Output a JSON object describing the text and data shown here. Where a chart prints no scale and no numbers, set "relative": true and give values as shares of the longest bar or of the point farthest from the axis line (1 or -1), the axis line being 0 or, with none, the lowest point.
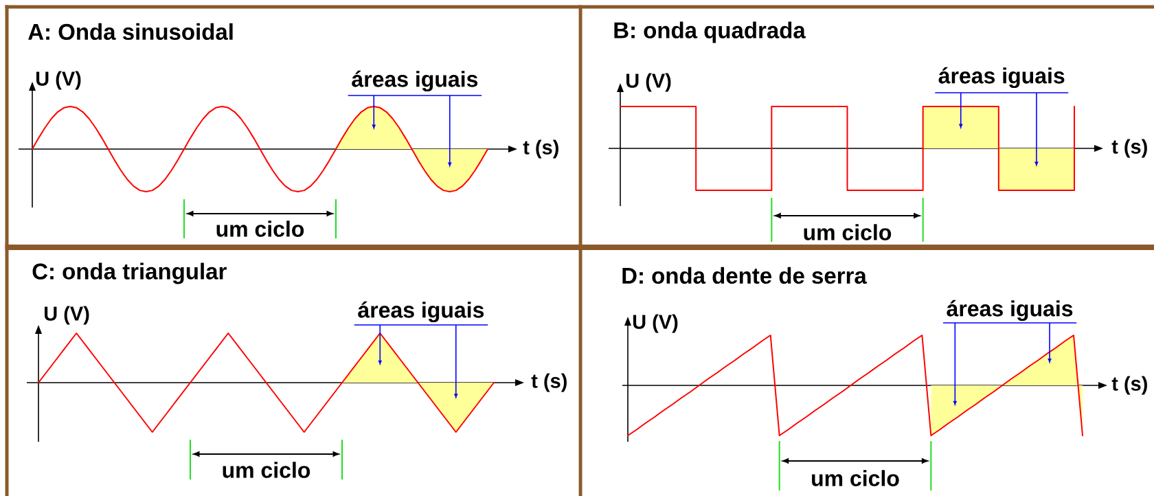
{
  "chart_data": [
    {
      "type": "line",
      "title": "A: Onda sinusoidal",
      "xlabel": "t (s)",
      "ylabel": "U (V)",
      "relative": true,
      "categories": [
        null,
        null,
        null,
        null,
        null,
        null,
        null,
        null,
        null,
        null,
        null,
        null,
        null,
        null,
        null,
        null,
        null,
        null,
        null,
        null,
        null,
        null,
        null,
        null,
        null,
        null,
        null,
        null,
        null,
        null,
        null,
        null,
        null,
        null,
        null,
        null,
        null,
        null,
        null,
        null,
        null,
        null,
        null,
        null,
        null,
        null,
        null,
        null,
        null,
        null,
        null,
        null,
        null,
        null,
        null,
        null,
        null,
        null,
        null,
        null,
        null,
        null,
        null,
        null,
        null,
        null,
        null,
        null,
        null,
        null,
        null,
        null,
        null
      ],
      "series": [
        {
          "color": "#ff0000",
          "values": [
            0,
            0.26,
            0.5,
            0.71,
            0.87,
            0.97,
            1,
            0.97,
            0.87,
            0.71,
            0.5,
            0.26,
            0,
            -0.26,
            -0.5,
            -0.71,
            -0.87,
            -0.97,
            -1,
            -0.97,
            -0.87,
            -0.71,
            -0.5,
            -0.26,
            0,
            0.26,
            0.5,
            0.71,
            0.87,
            0.97,
            1,
            0.97,
            0.87,
            0.71,
            0.5,
            0.26,
            0,
            -0.26,
            -0.5,
            -0.71,
            -0.87,
            -0.97,
            -1,
            -0.97,
            -0.87,
            -0.71,
            -0.5,
            -0.26,
            0,
            0.26,
            0.5,
            0.71,
            0.87,
            0.97,
            1,
            0.97,
            0.87,
            0.71,
            0.5,
            0.26,
            0,
            -0.26,
            -0.5,
            -0.71,
            -0.87,
            -0.97,
            -1,
            -0.97,
            -0.87,
            -0.71,
            -0.5,
            -0.26,
            0
          ]
        },
        {
          "type": "area",
          "color": "#ffff99",
          "values": [
            null,
            null,
            null,
            null,
            null,
            null,
            null,
            null,
            null,
            null,
            null,
            null,
            null,
            null,
            null,
            null,
            null,
            null,
            null,
            null,
            null,
            null,
            null,
            null,
            null,
            null,
            null,
            null,
            null,
            null,
            null,
            null,
            null,
            null,
            null,
            null,
            null,
            null,
            null,
            null,
            null,
            null,
            null,
            null,
            null,
            null,
            null,
            null,
            0,
            0.26,
            0.5,
            0.71,
            0.87,
            0.97,
            1,
            0.97,
            0.87,
            0.71,
            0.5,
            0.26,
            0,
            -0.26,
            -0.5,
            -0.71,
            -0.87,
            -0.97,
            -1,
            -0.97,
            -0.87,
            -0.71,
            -0.5,
            -0.26,
            0
          ]
        }
      ],
      "annotations": [
        "áreas iguais",
        "um ciclo"
      ]
    },
    {
      "type": "step",
      "title": "B: onda quadrada",
      "xlabel": "t (s)",
      "ylabel": "U (V)",
      "relative": true,
      "categories": [
        null,
        null,
        null,
        null,
        null,
        null,
        null
      ],
      "series": [
        {
          "color": "#ff0000",
          "values": [
            1,
            -1,
            1,
            -1,
            1,
            -1,
            1
          ]
        },
        {
          "type": "area",
          "color": "#ffff99",
          "values": [
            null,
            null,
            null,
            null,
            1,
            -1,
            1
          ]
        }
      ],
      "annotations": [
        "áreas iguais",
        "um ciclo"
      ]
    },
    {
      "type": "line",
      "title": "C: onda triangular",
      "xlabel": "t (s)",
      "ylabel": "U (V)",
      "relative": true,
      "categories": [
        null,
        null,
        null,
        null,
        null,
        null,
        null,
        null,
        null,
        null,
        null,
        null,
        null,
        null,
        null,
        null,
        null,
        null,
        null,
        null,
        null,
        null,
        null,
        null,
        null
      ],
      "series": [
        {
          "color": "#ff0000",
          "values": [
            0,
            0.5,
            1,
            0.5,
            0,
            -0.5,
            -1,
            -0.5,
            0,
            0.5,
            1,
            0.5,
            0,
            -0.5,
            -1,
            -0.5,
            0,
            0.5,
            1,
            0.5,
            0,
            -0.5,
            -1,
            -0.5,
            0
          ]
        },
        {
          "type": "area",
          "color": "#ffff99",
          "values": [
            null,
            null,
            null,
            null,
            null,
            null,
            null,
            null,
            null,
            null,
            null,
            null,
            null,
            null,
            null,
            null,
            0,
            0.5,
            1,
            0.5,
            0,
            -0.5,
            -1,
            -0.5,
            0
          ]
        }
      ],
      "annotations": [
        "áreas iguais",
        "um ciclo"
      ]
    },
    {
      "type": "line",
      "title": "D: onda dente de serra",
      "xlabel": "t (s)",
      "ylabel": "U (V)",
      "relative": true,
      "categories": [
        null,
        null,
        null,
        null,
        null,
        null,
        null,
        null,
        null,
        null,
        null,
        null,
        null,
        null,
        null,
        null,
        null,
        null,
        null,
        null,
        null,
        null,
        null,
        null,
        null,
        null,
        null,
        null,
        null,
        null,
        null,
        null,
        null,
        null,
        null,
        null,
        null,
        null,
        null,
        null,
        null,
        null,
        null,
        null,
        null,
        null,
        null,
        null,
        null,
        null,
        null,
        null
      ],
      "series": [
        {
          "color": "#ff0000",
          "values": [
            -1,
            -0.88,
            -0.75,
            -0.63,
            -0.5,
            -0.38,
            -0.25,
            -0.13,
            0,
            0.13,
            0.25,
            0.38,
            0.5,
            0.63,
            0.75,
            0.88,
            1,
            -1,
            -0.88,
            -0.75,
            -0.63,
            -0.5,
            -0.38,
            -0.25,
            -0.13,
            0,
            0.13,
            0.25,
            0.38,
            0.5,
            0.63,
            0.75,
            0.88,
            1,
            -1,
            -0.88,
            -0.75,
            -0.63,
            -0.5,
            -0.38,
            -0.25,
            -0.13,
            0,
            0.13,
            0.25,
            0.38,
            0.5,
            0.63,
            0.75,
            0.88,
            1,
            -1
          ]
        },
        {
          "type": "area",
          "color": "#ffff99",
          "values": [
            null,
            null,
            null,
            null,
            null,
            null,
            null,
            null,
            null,
            null,
            null,
            null,
            null,
            null,
            null,
            null,
            null,
            null,
            null,
            null,
            null,
            null,
            null,
            null,
            null,
            null,
            null,
            null,
            null,
            null,
            null,
            null,
            null,
            null,
            -1,
            -0.88,
            -0.75,
            -0.63,
            -0.5,
            -0.38,
            -0.25,
            -0.13,
            0,
            0.13,
            0.25,
            0.38,
            0.5,
            0.63,
            0.75,
            0.88,
            1,
            -1
          ]
        }
      ],
      "annotations": [
        "áreas iguais",
        "um ciclo"
      ]
    }
  ]
}
